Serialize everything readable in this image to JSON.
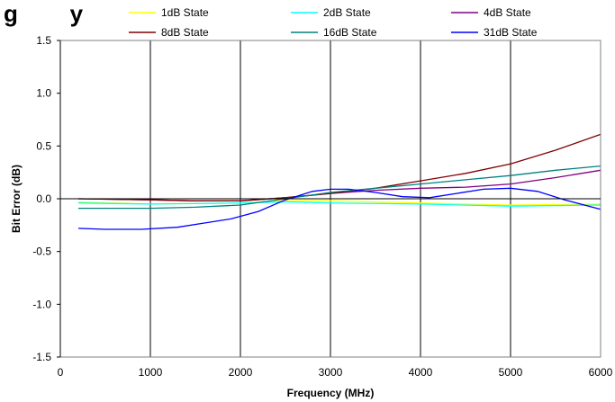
{
  "chart_data": {
    "type": "line",
    "title": "g        y",
    "xlabel": "Frequency (MHz)",
    "ylabel": "Bit Error (dB)",
    "xlim": [
      0,
      6000
    ],
    "ylim": [
      -1.5,
      1.5
    ],
    "x_ticks": [
      0,
      1000,
      2000,
      3000,
      4000,
      5000,
      6000
    ],
    "y_ticks": [
      -1.5,
      -1.0,
      -0.5,
      0.0,
      0.5,
      1.0,
      1.5
    ],
    "x_tick_labels": [
      "0",
      "1000",
      "2000",
      "3000",
      "4000",
      "5000",
      "6000"
    ],
    "y_tick_labels": [
      "-1.5",
      "-1.0",
      "-0.5",
      "0.0",
      "0.5",
      "1.0",
      "1.5"
    ],
    "grid": "vertical",
    "legend_position": "top",
    "series": [
      {
        "name": "1dB State",
        "color": "#ffff00",
        "points": [
          [
            200,
            -0.03
          ],
          [
            1000,
            -0.05
          ],
          [
            2000,
            -0.04
          ],
          [
            2500,
            -0.02
          ],
          [
            3000,
            -0.02
          ],
          [
            4000,
            -0.04
          ],
          [
            5000,
            -0.06
          ],
          [
            6000,
            -0.05
          ]
        ]
      },
      {
        "name": "2dB State",
        "color": "#00ffff",
        "points": [
          [
            200,
            -0.04
          ],
          [
            1000,
            -0.05
          ],
          [
            2000,
            -0.04
          ],
          [
            2500,
            -0.03
          ],
          [
            3000,
            -0.04
          ],
          [
            4000,
            -0.05
          ],
          [
            5000,
            -0.07
          ],
          [
            6000,
            -0.06
          ]
        ]
      },
      {
        "name": "4dB State",
        "color": "#800080",
        "points": [
          [
            200,
            0.0
          ],
          [
            1000,
            -0.01
          ],
          [
            1500,
            -0.02
          ],
          [
            2000,
            -0.02
          ],
          [
            2500,
            0.01
          ],
          [
            3000,
            0.05
          ],
          [
            3500,
            0.08
          ],
          [
            4000,
            0.1
          ],
          [
            4500,
            0.11
          ],
          [
            5000,
            0.14
          ],
          [
            5500,
            0.2
          ],
          [
            6000,
            0.27
          ]
        ]
      },
      {
        "name": "8dB State",
        "color": "#800000",
        "points": [
          [
            200,
            0.0
          ],
          [
            1000,
            -0.01
          ],
          [
            1500,
            -0.02
          ],
          [
            2000,
            -0.02
          ],
          [
            2500,
            0.01
          ],
          [
            3000,
            0.05
          ],
          [
            3500,
            0.1
          ],
          [
            4000,
            0.17
          ],
          [
            4500,
            0.24
          ],
          [
            5000,
            0.33
          ],
          [
            5500,
            0.46
          ],
          [
            6000,
            0.61
          ]
        ]
      },
      {
        "name": "16dB State",
        "color": "#008080",
        "points": [
          [
            200,
            -0.09
          ],
          [
            1000,
            -0.09
          ],
          [
            1500,
            -0.08
          ],
          [
            2000,
            -0.06
          ],
          [
            2500,
            0.0
          ],
          [
            3000,
            0.06
          ],
          [
            3500,
            0.1
          ],
          [
            4000,
            0.14
          ],
          [
            4500,
            0.18
          ],
          [
            5000,
            0.22
          ],
          [
            5500,
            0.27
          ],
          [
            6000,
            0.31
          ]
        ]
      },
      {
        "name": "31dB State",
        "color": "#0000ff",
        "points": [
          [
            200,
            -0.28
          ],
          [
            500,
            -0.29
          ],
          [
            900,
            -0.29
          ],
          [
            1300,
            -0.27
          ],
          [
            1600,
            -0.23
          ],
          [
            1900,
            -0.19
          ],
          [
            2200,
            -0.12
          ],
          [
            2500,
            -0.01
          ],
          [
            2800,
            0.07
          ],
          [
            3000,
            0.09
          ],
          [
            3200,
            0.09
          ],
          [
            3500,
            0.06
          ],
          [
            3800,
            0.02
          ],
          [
            4100,
            0.01
          ],
          [
            4400,
            0.05
          ],
          [
            4700,
            0.09
          ],
          [
            5000,
            0.1
          ],
          [
            5300,
            0.07
          ],
          [
            5600,
            -0.01
          ],
          [
            6000,
            -0.1
          ]
        ]
      }
    ]
  }
}
